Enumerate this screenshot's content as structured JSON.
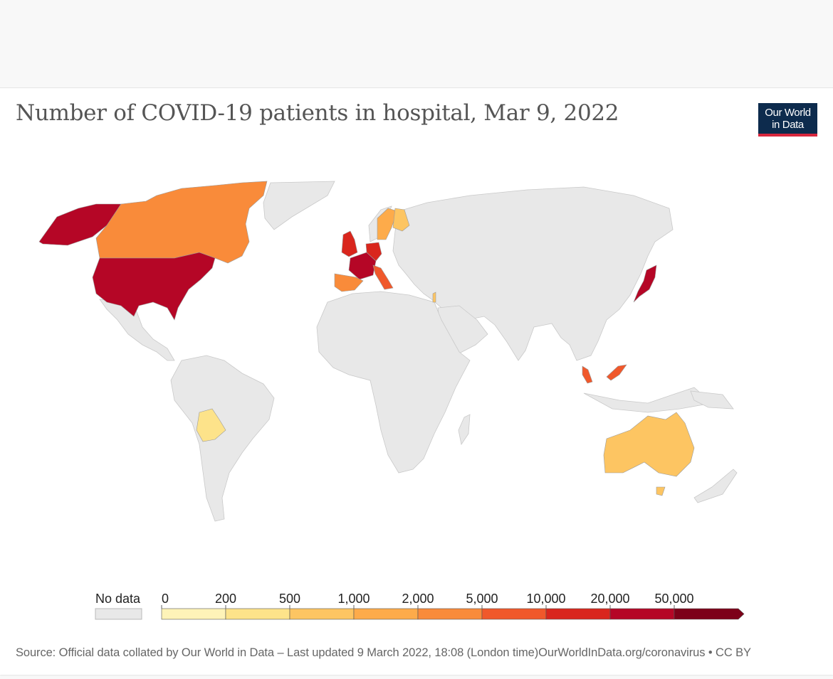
{
  "title": "Number of COVID-19 patients in hospital, Mar 9, 2022",
  "logo": {
    "line1": "Our World",
    "line2": "in Data"
  },
  "legend": {
    "no_data_label": "No data",
    "no_data_color": "#e8e8e8",
    "ticks": [
      "0",
      "200",
      "500",
      "1,000",
      "2,000",
      "5,000",
      "10,000",
      "20,000",
      "50,000"
    ],
    "bins": [
      {
        "from": "0",
        "to": "200",
        "color": "#fef3b8"
      },
      {
        "from": "200",
        "to": "500",
        "color": "#fde38a"
      },
      {
        "from": "500",
        "to": "1,000",
        "color": "#fdc562"
      },
      {
        "from": "1,000",
        "to": "2,000",
        "color": "#fdab4a"
      },
      {
        "from": "2,000",
        "to": "5,000",
        "color": "#f98b3a"
      },
      {
        "from": "5,000",
        "to": "10,000",
        "color": "#f0582b"
      },
      {
        "from": "10,000",
        "to": "20,000",
        "color": "#d9261d"
      },
      {
        "from": "20,000",
        "to": "50,000",
        "color": "#b50626"
      },
      {
        "from": "50,000",
        "to": "",
        "color": "#7d0019"
      }
    ]
  },
  "regions": [
    {
      "name": "United States",
      "color": "#b50626"
    },
    {
      "name": "Alaska",
      "color": "#b50626"
    },
    {
      "name": "Canada",
      "color": "#f98b3a"
    },
    {
      "name": "Bolivia",
      "color": "#fde38a"
    },
    {
      "name": "United Kingdom",
      "color": "#d9261d"
    },
    {
      "name": "France",
      "color": "#b50626"
    },
    {
      "name": "Spain",
      "color": "#f98b3a"
    },
    {
      "name": "Italy",
      "color": "#f0582b"
    },
    {
      "name": "Germany",
      "color": "#d9261d"
    },
    {
      "name": "Sweden",
      "color": "#fdab4a"
    },
    {
      "name": "Finland",
      "color": "#fdc562"
    },
    {
      "name": "Japan",
      "color": "#b50626"
    },
    {
      "name": "Malaysia",
      "color": "#f0582b"
    },
    {
      "name": "Australia",
      "color": "#fdc562"
    },
    {
      "name": "Israel",
      "color": "#fdc562"
    }
  ],
  "source": "Source: Official data collated by Our World in Data – Last updated 9 March 2022, 18:08 (London time)",
  "url_license": "OurWorldInData.org/coronavirus • CC BY"
}
